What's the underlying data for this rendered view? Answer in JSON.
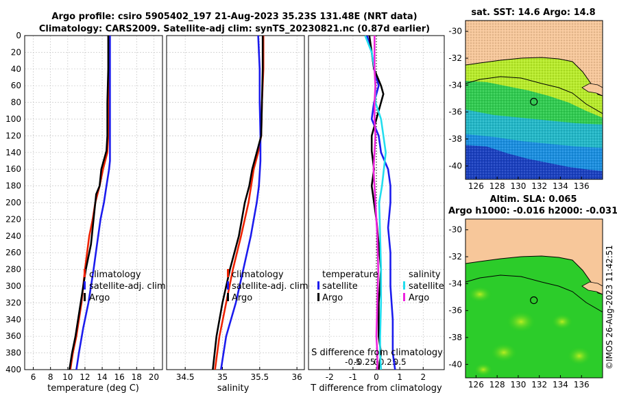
{
  "header": {
    "line1": "Argo profile: csiro 5905402_197 21-Aug-2023 35.23S 131.48E (NRT data)",
    "line2": "Climatology: CARS2009. Satellite-adj clim: synTS_20230821.nc (0.87d earlier)"
  },
  "colors": {
    "climatology": "#ee2200",
    "satellite": "#1b1bee",
    "argo": "#000000",
    "salinity_sat": "#22ddee",
    "salinity_argo": "#ee22dd",
    "land": "#f7c79a"
  },
  "chart_data": [
    {
      "type": "line",
      "name": "temperature",
      "xlabel": "temperature (deg C)",
      "ylabel": "",
      "xlim": [
        5,
        21
      ],
      "ylim": [
        400,
        0
      ],
      "xticks": [
        "6",
        "8",
        "10",
        "12",
        "14",
        "16",
        "18",
        "20"
      ],
      "yticks": [
        "0",
        "20",
        "40",
        "60",
        "80",
        "100",
        "120",
        "140",
        "160",
        "180",
        "200",
        "220",
        "240",
        "260",
        "280",
        "300",
        "320",
        "340",
        "360",
        "380",
        "400"
      ],
      "legend": [
        "climatology",
        "satellite-adj. clim",
        "Argo"
      ],
      "series": [
        {
          "name": "climatology",
          "points": [
            [
              14.8,
              0
            ],
            [
              14.8,
              40
            ],
            [
              14.8,
              80
            ],
            [
              14.7,
              120
            ],
            [
              14.6,
              140
            ],
            [
              14.1,
              160
            ],
            [
              13.7,
              180
            ],
            [
              13.2,
              200
            ],
            [
              12.9,
              220
            ],
            [
              12.5,
              240
            ],
            [
              12.0,
              280
            ],
            [
              11.6,
              320
            ],
            [
              11.0,
              360
            ],
            [
              10.6,
              380
            ],
            [
              10.3,
              400
            ]
          ]
        },
        {
          "name": "satellite-adj. clim",
          "points": [
            [
              14.9,
              0
            ],
            [
              14.9,
              40
            ],
            [
              14.9,
              80
            ],
            [
              14.9,
              120
            ],
            [
              14.9,
              150
            ],
            [
              14.8,
              160
            ],
            [
              14.5,
              180
            ],
            [
              14.2,
              200
            ],
            [
              13.8,
              220
            ],
            [
              13.4,
              250
            ],
            [
              13.0,
              280
            ],
            [
              12.4,
              320
            ],
            [
              11.8,
              350
            ],
            [
              11.3,
              380
            ],
            [
              11.0,
              400
            ]
          ]
        },
        {
          "name": "Argo",
          "points": [
            [
              14.7,
              0
            ],
            [
              14.7,
              40
            ],
            [
              14.6,
              80
            ],
            [
              14.6,
              120
            ],
            [
              14.5,
              138
            ],
            [
              13.9,
              160
            ],
            [
              13.7,
              180
            ],
            [
              13.3,
              190
            ],
            [
              13.0,
              220
            ],
            [
              12.7,
              250
            ],
            [
              12.1,
              280
            ],
            [
              11.5,
              320
            ],
            [
              10.9,
              360
            ],
            [
              10.5,
              380
            ],
            [
              10.2,
              400
            ]
          ]
        }
      ]
    },
    {
      "type": "line",
      "name": "salinity",
      "xlabel": "salinity",
      "ylabel": "",
      "xlim": [
        34.25,
        36.1
      ],
      "ylim": [
        400,
        0
      ],
      "xticks": [
        "34.5",
        "35",
        "35.5",
        "36"
      ],
      "legend": [
        "climatology",
        "satellite-adj. clim",
        "Argo"
      ],
      "series": [
        {
          "name": "climatology",
          "points": [
            [
              35.55,
              0
            ],
            [
              35.55,
              40
            ],
            [
              35.53,
              80
            ],
            [
              35.52,
              120
            ],
            [
              35.48,
              140
            ],
            [
              35.42,
              160
            ],
            [
              35.35,
              200
            ],
            [
              35.25,
              240
            ],
            [
              35.14,
              280
            ],
            [
              35.05,
              320
            ],
            [
              34.96,
              360
            ],
            [
              34.9,
              400
            ]
          ]
        },
        {
          "name": "satellite-adj. clim",
          "points": [
            [
              35.48,
              0
            ],
            [
              35.5,
              40
            ],
            [
              35.5,
              80
            ],
            [
              35.51,
              120
            ],
            [
              35.51,
              150
            ],
            [
              35.49,
              180
            ],
            [
              35.46,
              200
            ],
            [
              35.38,
              240
            ],
            [
              35.28,
              280
            ],
            [
              35.18,
              320
            ],
            [
              35.05,
              360
            ],
            [
              34.98,
              400
            ]
          ]
        },
        {
          "name": "Argo",
          "points": [
            [
              35.54,
              0
            ],
            [
              35.54,
              40
            ],
            [
              35.53,
              80
            ],
            [
              35.52,
              120
            ],
            [
              35.46,
              140
            ],
            [
              35.4,
              160
            ],
            [
              35.36,
              180
            ],
            [
              35.3,
              200
            ],
            [
              35.22,
              240
            ],
            [
              35.1,
              280
            ],
            [
              35.0,
              320
            ],
            [
              34.92,
              360
            ],
            [
              34.87,
              400
            ]
          ]
        }
      ]
    },
    {
      "type": "line",
      "name": "difference from climatology",
      "xlabel": "T difference from climatology",
      "top_xlabel": "S difference from climatology",
      "xlim": [
        -2.9,
        2.9
      ],
      "ylim": [
        400,
        0
      ],
      "xticks": [
        "-2",
        "-1",
        "0",
        "1",
        "2"
      ],
      "top_xticks": [
        "-0.5",
        "-0.25",
        "0",
        "0.25",
        "0.5"
      ],
      "legend_temperature": [
        "temperature",
        "satellite",
        "Argo"
      ],
      "legend_salinity": [
        "salinity",
        "satellite",
        "Argo"
      ],
      "series": [
        {
          "name": "temperature satellite",
          "points": [
            [
              -0.4,
              0
            ],
            [
              -0.2,
              20
            ],
            [
              -0.1,
              40
            ],
            [
              0.1,
              60
            ],
            [
              -0.1,
              80
            ],
            [
              -0.2,
              100
            ],
            [
              0.1,
              120
            ],
            [
              0.2,
              140
            ],
            [
              0.5,
              160
            ],
            [
              0.6,
              180
            ],
            [
              0.6,
              200
            ],
            [
              0.5,
              230
            ],
            [
              0.6,
              260
            ],
            [
              0.6,
              300
            ],
            [
              0.7,
              340
            ],
            [
              0.7,
              380
            ],
            [
              0.8,
              400
            ]
          ]
        },
        {
          "name": "temperature Argo",
          "points": [
            [
              -0.3,
              0
            ],
            [
              -0.2,
              20
            ],
            [
              -0.1,
              40
            ],
            [
              0.2,
              60
            ],
            [
              0.3,
              70
            ],
            [
              0.1,
              90
            ],
            [
              -0.2,
              120
            ],
            [
              -0.2,
              138
            ],
            [
              -0.1,
              160
            ],
            [
              -0.2,
              180
            ],
            [
              -0.1,
              200
            ],
            [
              0.0,
              220
            ],
            [
              0.1,
              250
            ],
            [
              0.2,
              280
            ],
            [
              0.1,
              320
            ],
            [
              0.1,
              360
            ],
            [
              0.2,
              380
            ],
            [
              0.1,
              400
            ]
          ]
        },
        {
          "name": "salinity satellite",
          "points": [
            [
              -0.12,
              0
            ],
            [
              -0.05,
              20
            ],
            [
              -0.02,
              40
            ],
            [
              -0.01,
              60
            ],
            [
              -0.01,
              80
            ],
            [
              0.05,
              100
            ],
            [
              0.1,
              140
            ],
            [
              0.06,
              180
            ],
            [
              0.03,
              200
            ],
            [
              0.04,
              240
            ],
            [
              0.05,
              280
            ],
            [
              0.05,
              320
            ],
            [
              0.04,
              360
            ],
            [
              0.04,
              380
            ],
            [
              0.05,
              400
            ]
          ]
        },
        {
          "name": "salinity Argo",
          "points": [
            [
              -0.02,
              0
            ],
            [
              -0.02,
              40
            ],
            [
              -0.01,
              60
            ],
            [
              -0.02,
              80
            ],
            [
              -0.02,
              100
            ],
            [
              -0.01,
              120
            ],
            [
              -0.02,
              140
            ],
            [
              -0.03,
              160
            ],
            [
              -0.01,
              200
            ],
            [
              0.01,
              240
            ],
            [
              0.02,
              280
            ],
            [
              0.01,
              320
            ],
            [
              0.0,
              360
            ],
            [
              0.01,
              380
            ],
            [
              0.01,
              400
            ]
          ]
        }
      ]
    },
    {
      "type": "heatmap",
      "name": "satellite SST map",
      "title": "sat. SST: 14.6 Argo: 14.8",
      "xlim": [
        125,
        138
      ],
      "ylim": [
        -41,
        -29.2
      ],
      "xticks": [
        "126",
        "128",
        "130",
        "132",
        "134",
        "136"
      ],
      "yticks": [
        "-30",
        "-32",
        "-34",
        "-36",
        "-38",
        "-40"
      ],
      "marker": [
        131.48,
        -35.23
      ]
    },
    {
      "type": "heatmap",
      "name": "altimetry SLA map",
      "title_line1": "Altim. SLA: 0.065",
      "title_line2": "Argo h1000: -0.016 h2000: -0.031",
      "xlim": [
        125,
        138
      ],
      "ylim": [
        -41,
        -29.2
      ],
      "xticks": [
        "126",
        "128",
        "130",
        "132",
        "134",
        "136"
      ],
      "yticks": [
        "-30",
        "-32",
        "-34",
        "-36",
        "-38",
        "-40"
      ],
      "marker": [
        131.48,
        -35.23
      ]
    }
  ],
  "footer": {
    "imos_stamp": "©IMOS 26-Aug-2023 11:42:51"
  }
}
